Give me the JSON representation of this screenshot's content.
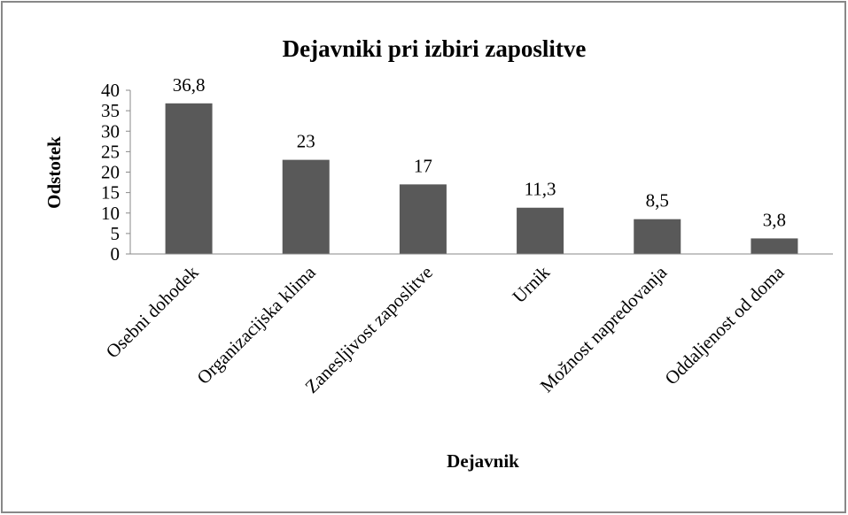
{
  "chart_data": {
    "type": "bar",
    "title": "Dejavniki pri izbiri zaposlitve",
    "x_label": "Dejavnik",
    "y_label": "Odstotek",
    "categories": [
      "Osebni dohodek",
      "Organizacijska klima",
      "Zanesljivost zaposlitve",
      "Urnik",
      "Možnost napredovanja",
      "Oddaljenost od doma"
    ],
    "values": [
      36.8,
      23,
      17,
      11.3,
      8.5,
      3.8
    ],
    "value_labels": [
      "36,8",
      "23",
      "17",
      "11,3",
      "8,5",
      "3,8"
    ],
    "color": "#595959",
    "ylim": [
      0,
      40
    ],
    "yticks": [
      0,
      5,
      10,
      15,
      20,
      25,
      30,
      35,
      40
    ],
    "grid": false
  }
}
